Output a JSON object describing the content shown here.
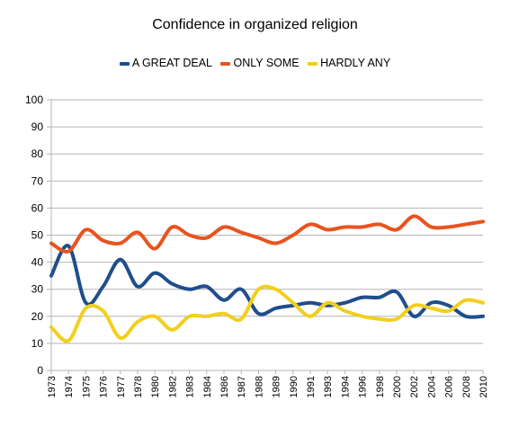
{
  "chart_data": {
    "type": "line",
    "title": "Confidence in organized religion",
    "xlabel": "",
    "ylabel": "",
    "ylim": [
      0,
      100
    ],
    "yticks": [
      0,
      10,
      20,
      30,
      40,
      50,
      60,
      70,
      80,
      90,
      100
    ],
    "grid": true,
    "legend_position": "top",
    "smooth": true,
    "categories": [
      "1973",
      "1974",
      "1975",
      "1976",
      "1977",
      "1978",
      "1980",
      "1982",
      "1983",
      "1984",
      "1986",
      "1987",
      "1988",
      "1989",
      "1990",
      "1991",
      "1993",
      "1994",
      "1996",
      "1998",
      "2000",
      "2002",
      "2004",
      "2006",
      "2008",
      "2010"
    ],
    "series": [
      {
        "name": "A GREAT DEAL",
        "color": "#1F4E8C",
        "values": [
          35,
          46,
          25,
          31,
          41,
          31,
          36,
          32,
          30,
          31,
          26,
          30,
          21,
          23,
          24,
          25,
          24,
          25,
          27,
          27,
          29,
          20,
          25,
          24,
          20,
          20
        ]
      },
      {
        "name": "ONLY SOME",
        "color": "#E8531E",
        "values": [
          47,
          44,
          52,
          48,
          47,
          51,
          45,
          53,
          50,
          49,
          53,
          51,
          49,
          47,
          50,
          54,
          52,
          53,
          53,
          54,
          52,
          57,
          53,
          53,
          54,
          55
        ]
      },
      {
        "name": "HARDLY ANY",
        "color": "#F2CF1D",
        "values": [
          16,
          11,
          23,
          22,
          12,
          18,
          20,
          15,
          20,
          20,
          21,
          19,
          30,
          30,
          25,
          20,
          25,
          22,
          20,
          19,
          19,
          24,
          23,
          22,
          26,
          25
        ]
      }
    ]
  }
}
